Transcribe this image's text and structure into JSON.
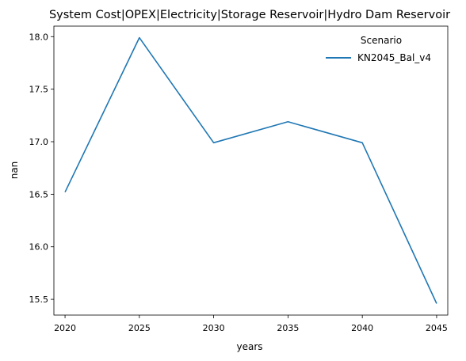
{
  "chart_data": {
    "type": "line",
    "title": "System Cost|OPEX|Electricity|Storage Reservoir|Hydro Dam Reservoir",
    "xlabel": "years",
    "ylabel": "nan",
    "x": [
      2020,
      2025,
      2030,
      2035,
      2040,
      2045
    ],
    "xticks": [
      "2020",
      "2025",
      "2030",
      "2035",
      "2040",
      "2045"
    ],
    "yticks": [
      "15.5",
      "16.0",
      "16.5",
      "17.0",
      "17.5",
      "18.0"
    ],
    "ylim": [
      15.35,
      18.1
    ],
    "xlim": [
      2019.25,
      2045.75
    ],
    "grid": false,
    "legend": {
      "title": "Scenario",
      "placement": "top-right"
    },
    "series": [
      {
        "name": "KN2045_Bal_v4",
        "color": "#1f77b4",
        "values": [
          16.52,
          17.99,
          16.99,
          17.19,
          16.99,
          15.46
        ]
      }
    ]
  }
}
